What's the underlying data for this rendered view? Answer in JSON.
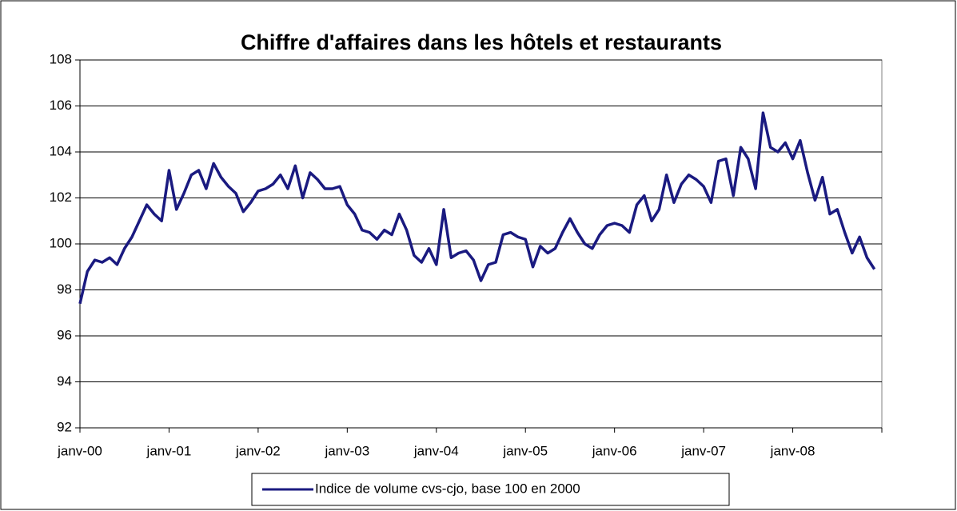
{
  "chart_data": {
    "type": "line",
    "title": "Chiffre d'affaires dans les hôtels et restaurants",
    "categories": [
      "janv-00",
      null,
      null,
      null,
      null,
      null,
      null,
      null,
      null,
      null,
      null,
      null,
      "janv-01",
      null,
      null,
      null,
      null,
      null,
      null,
      null,
      null,
      null,
      null,
      null,
      "janv-02",
      null,
      null,
      null,
      null,
      null,
      null,
      null,
      null,
      null,
      null,
      null,
      "janv-03",
      null,
      null,
      null,
      null,
      null,
      null,
      null,
      null,
      null,
      null,
      null,
      "janv-04",
      null,
      null,
      null,
      null,
      null,
      null,
      null,
      null,
      null,
      null,
      null,
      "janv-05",
      null,
      null,
      null,
      null,
      null,
      null,
      null,
      null,
      null,
      null,
      null,
      "janv-06",
      null,
      null,
      null,
      null,
      null,
      null,
      null,
      null,
      null,
      null,
      null,
      "janv-07",
      null,
      null,
      null,
      null,
      null,
      null,
      null,
      null,
      null,
      null,
      null,
      "janv-08",
      null,
      null,
      null,
      null,
      null,
      null,
      null,
      null,
      null,
      null,
      null
    ],
    "series": [
      {
        "name": "Indice de volume cvs-cjo, base 100 en 2000",
        "color": "#1a1a80",
        "values": [
          97.4,
          98.8,
          99.3,
          99.2,
          99.4,
          99.1,
          99.8,
          100.3,
          101.0,
          101.7,
          101.3,
          101.0,
          103.2,
          101.5,
          102.2,
          103.0,
          103.2,
          102.4,
          103.5,
          102.9,
          102.5,
          102.2,
          101.4,
          101.8,
          102.3,
          102.4,
          102.6,
          103.0,
          102.4,
          103.4,
          102.0,
          103.1,
          102.8,
          102.4,
          102.4,
          102.5,
          101.7,
          101.3,
          100.6,
          100.5,
          100.2,
          100.6,
          100.4,
          101.3,
          100.6,
          99.5,
          99.2,
          99.8,
          99.1,
          101.5,
          99.4,
          99.6,
          99.7,
          99.3,
          98.4,
          99.1,
          99.2,
          100.4,
          100.5,
          100.3,
          100.2,
          99.0,
          99.9,
          99.6,
          99.8,
          100.5,
          101.1,
          100.5,
          100.0,
          99.8,
          100.4,
          100.8,
          100.9,
          100.8,
          100.5,
          101.7,
          102.1,
          101.0,
          101.5,
          103.0,
          101.8,
          102.6,
          103.0,
          102.8,
          102.5,
          101.8,
          103.6,
          103.7,
          102.1,
          104.2,
          103.7,
          102.4,
          105.7,
          104.2,
          104.0,
          104.4,
          103.7,
          104.5,
          103.1,
          101.9,
          102.9,
          101.3,
          101.5,
          100.5,
          99.6,
          100.3,
          99.4,
          98.9
        ]
      }
    ],
    "ylim": [
      92,
      108
    ],
    "yticks": [
      92,
      94,
      96,
      98,
      100,
      102,
      104,
      106,
      108
    ],
    "grid": true
  }
}
